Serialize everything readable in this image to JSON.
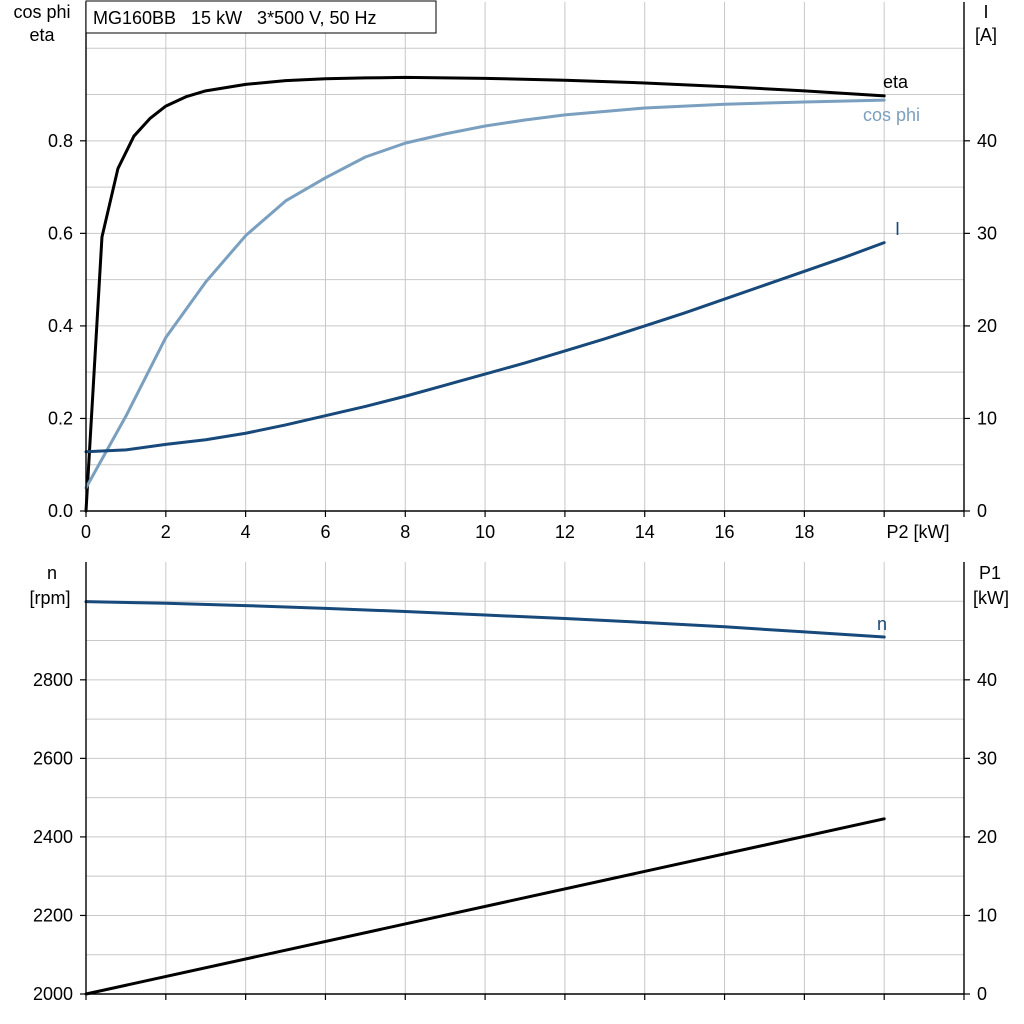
{
  "chart_data": [
    {
      "type": "line",
      "title": "MG160BB   15 kW   3*500 V, 50 Hz",
      "xlabel": "P2 [kW]",
      "xlim": [
        0,
        22
      ],
      "xticks": [
        0,
        2,
        4,
        6,
        8,
        10,
        12,
        14,
        16,
        18
      ],
      "ylabel_left_line1": "cos phi",
      "ylabel_left_line2": "eta",
      "ylim_left": [
        0,
        1.1
      ],
      "yticks_left": [
        "0.0",
        "0.2",
        "0.4",
        "0.6",
        "0.8"
      ],
      "ylabel_right_line1": "I",
      "ylabel_right_line2": "[A]",
      "ylim_right": [
        0,
        55
      ],
      "yticks_right": [
        "0",
        "10",
        "20",
        "30",
        "40"
      ],
      "grid": true,
      "series": [
        {
          "name": "eta",
          "axis": "left",
          "color": "#000000",
          "x": [
            0,
            0.4,
            0.8,
            1.2,
            1.6,
            2,
            2.5,
            3,
            4,
            5,
            6,
            7,
            8,
            9,
            10,
            12,
            14,
            16,
            18,
            20
          ],
          "values": [
            0.0,
            0.592,
            0.74,
            0.81,
            0.848,
            0.875,
            0.895,
            0.908,
            0.922,
            0.93,
            0.934,
            0.936,
            0.937,
            0.936,
            0.935,
            0.931,
            0.925,
            0.917,
            0.908,
            0.897
          ]
        },
        {
          "name": "cos phi",
          "axis": "left",
          "color": "#7a9fbf",
          "x": [
            0,
            1,
            2,
            3,
            4,
            5,
            6,
            7,
            8,
            9,
            10,
            11,
            12,
            14,
            16,
            18,
            20
          ],
          "values": [
            0.05,
            0.205,
            0.375,
            0.495,
            0.595,
            0.67,
            0.72,
            0.765,
            0.795,
            0.815,
            0.832,
            0.845,
            0.856,
            0.871,
            0.879,
            0.884,
            0.888
          ]
        },
        {
          "name": "I",
          "axis": "right",
          "color": "#17497a",
          "x": [
            0,
            1,
            2,
            3,
            4,
            5,
            6,
            7,
            8,
            9,
            10,
            11,
            12,
            13,
            14,
            15,
            16,
            17,
            18,
            19,
            20
          ],
          "values": [
            6.4,
            6.6,
            7.2,
            7.7,
            8.4,
            9.3,
            10.3,
            11.3,
            12.4,
            13.6,
            14.8,
            16.0,
            17.3,
            18.6,
            20.0,
            21.4,
            22.9,
            24.4,
            25.9,
            27.4,
            29.0
          ]
        }
      ]
    },
    {
      "type": "line",
      "xlim": [
        0,
        22
      ],
      "ylabel_left_line1": "n",
      "ylabel_left_line2": "[rpm]",
      "ylim_left": [
        2000,
        3100
      ],
      "yticks_left": [
        "2000",
        "2200",
        "2400",
        "2600",
        "2800"
      ],
      "ylabel_right_line1": "P1",
      "ylabel_right_line2": "[kW]",
      "ylim_right": [
        0,
        55
      ],
      "yticks_right": [
        "0",
        "10",
        "20",
        "30",
        "40"
      ],
      "grid": true,
      "series": [
        {
          "name": "n",
          "axis": "left",
          "color": "#17497a",
          "x": [
            0,
            2,
            4,
            6,
            8,
            10,
            12,
            14,
            16,
            18,
            20
          ],
          "values": [
            2999,
            2995,
            2989,
            2982,
            2974,
            2965,
            2956,
            2946,
            2935,
            2922,
            2909
          ]
        },
        {
          "axis": "right",
          "color": "#000000",
          "x": [
            0,
            20
          ],
          "values": [
            0,
            22.3
          ]
        }
      ]
    }
  ]
}
